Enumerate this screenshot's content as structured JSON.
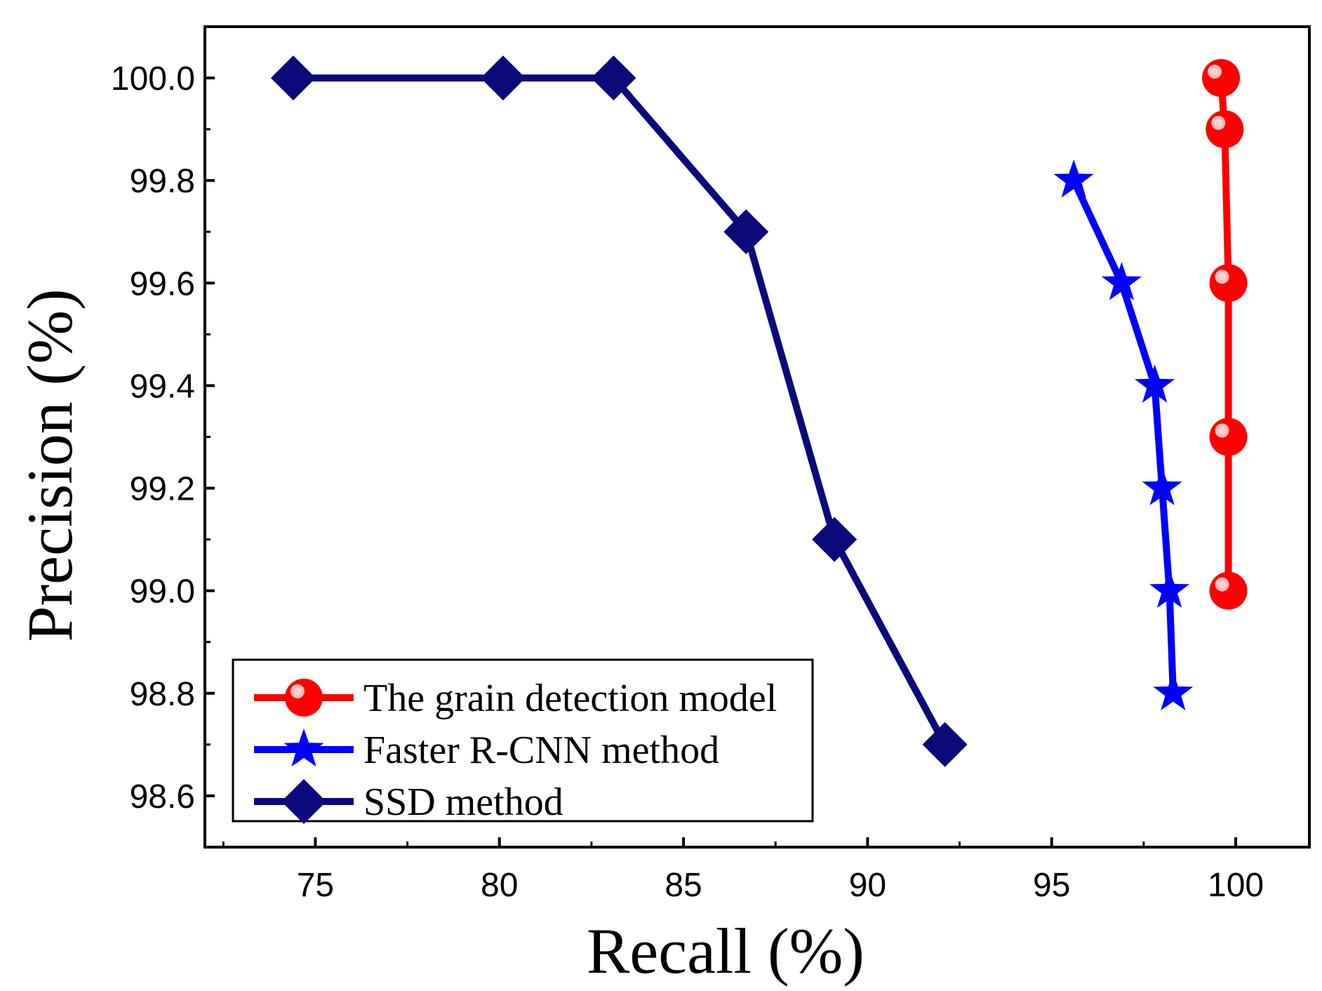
{
  "chart_data": {
    "type": "line",
    "xlabel": "Recall (%)",
    "ylabel": "Precision (%)",
    "xlim": [
      72,
      102
    ],
    "ylim": [
      98.5,
      100.1
    ],
    "xticks": [
      75,
      80,
      85,
      90,
      95,
      100
    ],
    "yticks": [
      98.6,
      98.8,
      99.0,
      99.2,
      99.4,
      99.6,
      99.8,
      100.0
    ],
    "xtick_labels": [
      "75",
      "80",
      "85",
      "90",
      "95",
      "100"
    ],
    "ytick_labels": [
      "98.6",
      "98.8",
      "99.0",
      "99.2",
      "99.4",
      "99.6",
      "99.8",
      "100.0"
    ],
    "grid": false,
    "legend_position": "bottom-left",
    "series": [
      {
        "name": "The grain detection model",
        "marker": "circle",
        "color": "#ff0000",
        "x": [
          99.6,
          99.7,
          99.8,
          99.8,
          99.8
        ],
        "y": [
          100.0,
          99.9,
          99.6,
          99.3,
          99.0
        ]
      },
      {
        "name": "Faster R-CNN method",
        "marker": "star",
        "color": "#0000ff",
        "x": [
          95.6,
          96.9,
          97.8,
          98.0,
          98.2,
          98.3
        ],
        "y": [
          99.8,
          99.6,
          99.4,
          99.2,
          99.0,
          98.8
        ]
      },
      {
        "name": "SSD method",
        "marker": "diamond",
        "color": "#0a0a7a",
        "x": [
          74.4,
          80.1,
          83.1,
          86.7,
          89.1,
          92.1
        ],
        "y": [
          100.0,
          100.0,
          100.0,
          99.7,
          99.1,
          98.7
        ]
      }
    ]
  }
}
